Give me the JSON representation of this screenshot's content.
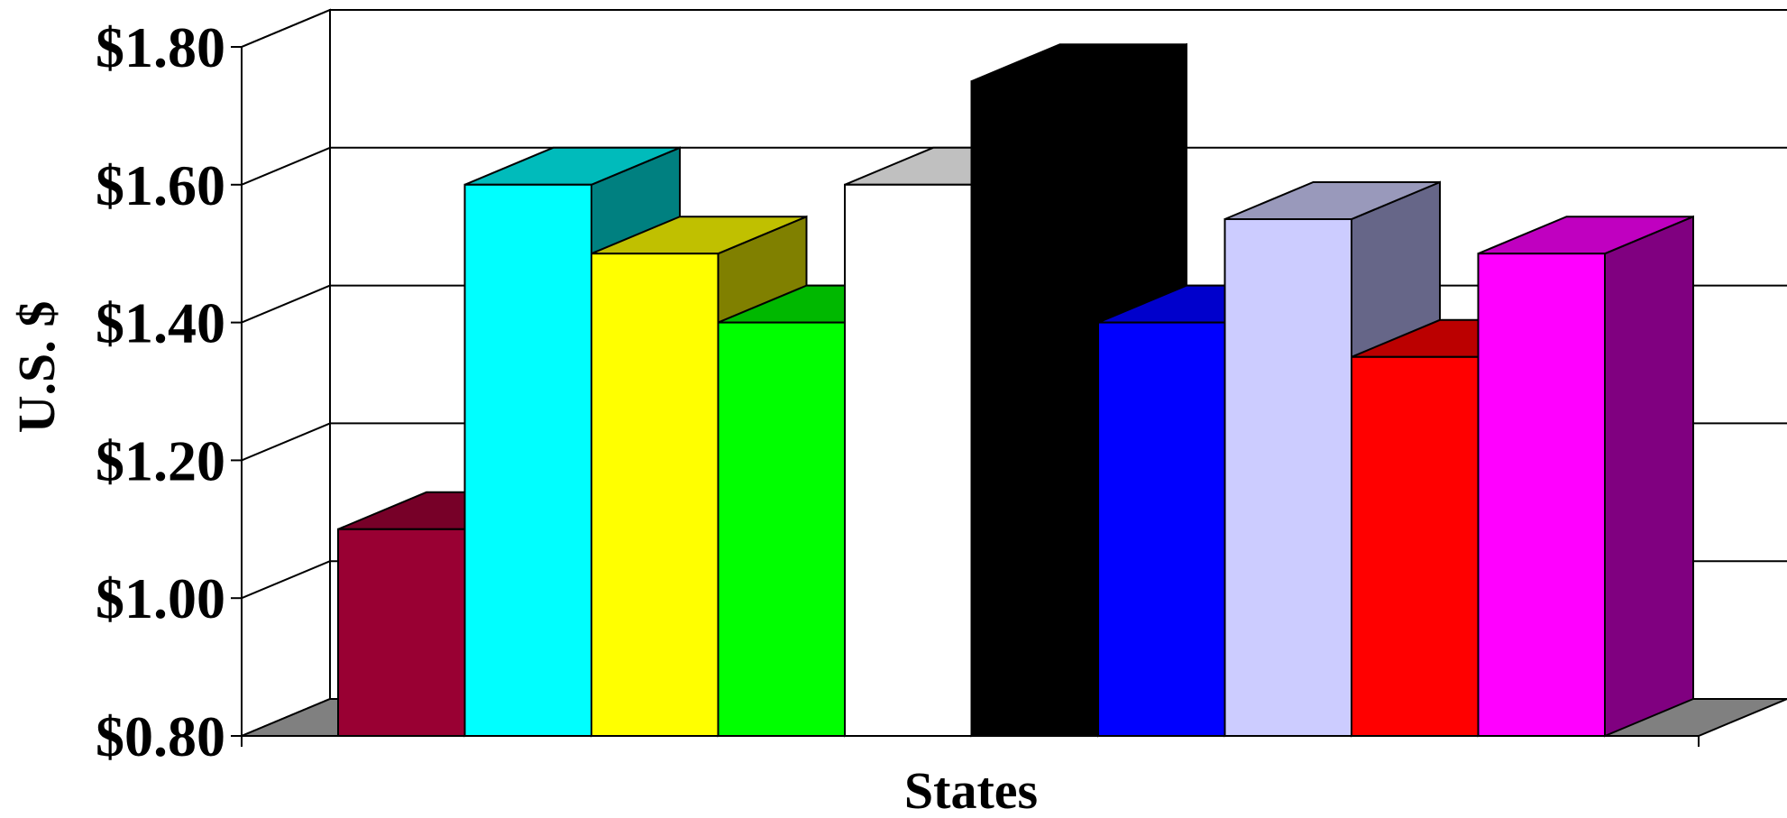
{
  "chart_data": {
    "type": "bar",
    "title": "",
    "xlabel": "States",
    "ylabel": "U.S. $",
    "ylim": [
      0.8,
      1.8
    ],
    "yticks": [
      0.8,
      1.0,
      1.2,
      1.4,
      1.6,
      1.8
    ],
    "ytick_labels": [
      "$0.80",
      "$1.00",
      "$1.20",
      "$1.40",
      "$1.60",
      "$1.80"
    ],
    "grid": true,
    "legend": "none",
    "style": "3d-column",
    "values": [
      1.1,
      1.6,
      1.5,
      1.4,
      1.6,
      1.75,
      1.4,
      1.55,
      1.35,
      1.5
    ],
    "colors": [
      "#990033",
      "#00ffff",
      "#ffff00",
      "#00ff00",
      "#ffffff",
      "#000000",
      "#0000ff",
      "#ccccff",
      "#ff0000",
      "#ff00ff"
    ],
    "side_colors": [
      "#660022",
      "#008080",
      "#808000",
      "#00b800",
      "#bfbfbf",
      "#000000",
      "#0000aa",
      "#666688",
      "#b00000",
      "#800080"
    ],
    "top_colors": [
      "#770028",
      "#00bbbb",
      "#c0c000",
      "#00b800",
      "#c0c0c0",
      "#000000",
      "#0000cc",
      "#9999bb",
      "#bb0000",
      "#c000c0"
    ]
  }
}
